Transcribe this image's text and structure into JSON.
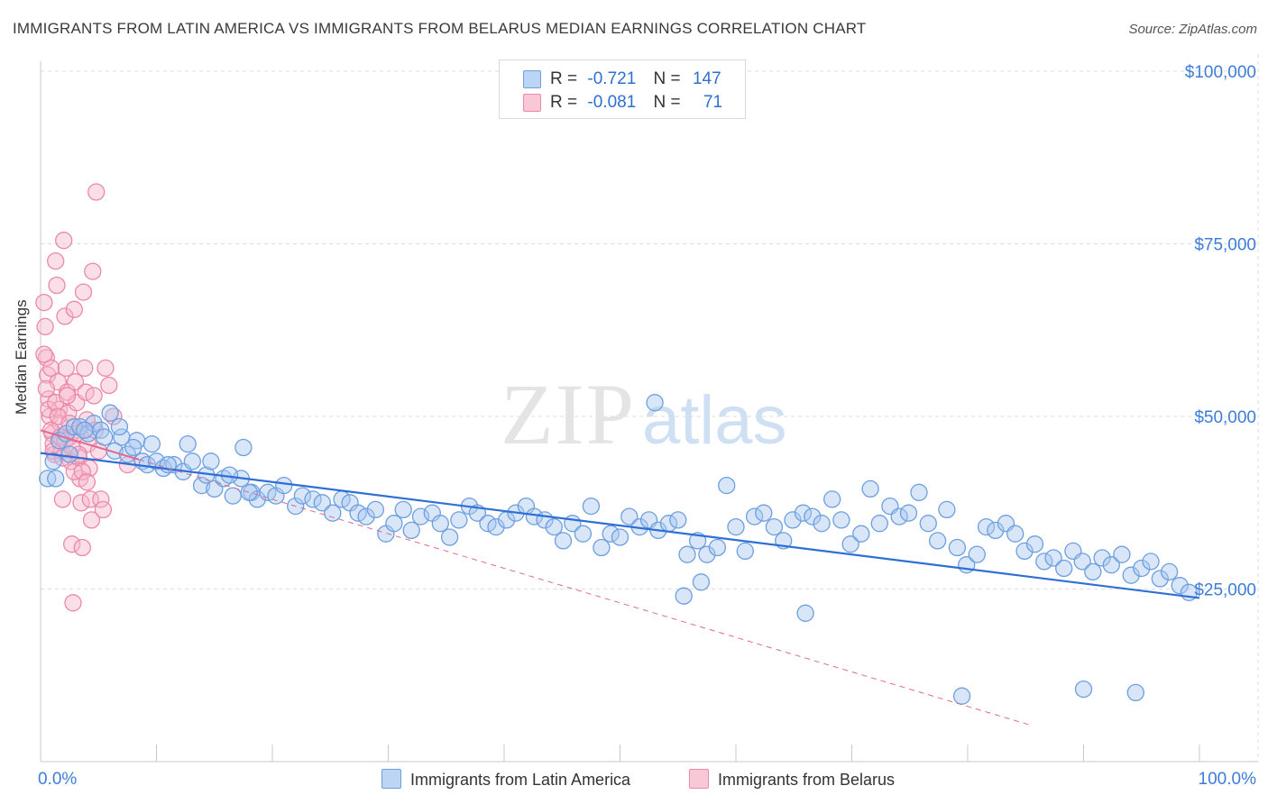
{
  "title": "IMMIGRANTS FROM LATIN AMERICA VS IMMIGRANTS FROM BELARUS MEDIAN EARNINGS CORRELATION CHART",
  "source": "Source: ZipAtlas.com",
  "watermark": {
    "zip": "ZIP",
    "atlas": "atlas"
  },
  "colors": {
    "blue_fill": "#a9c8f0",
    "blue_stroke": "#6d9fe0",
    "blue_line": "#2e6fd6",
    "pink_fill": "#f6b8cb",
    "pink_stroke": "#ec88a8",
    "pink_line": "#e06990",
    "tick_label": "#3d7dd8",
    "grid": "#dcdcdc"
  },
  "legend": {
    "rows": [
      {
        "r_label": "R =",
        "r_value": "-0.721",
        "n_label": "N =",
        "n_value": "147"
      },
      {
        "r_label": "R =",
        "r_value": "-0.081",
        "n_label": "N =",
        "n_value": "71"
      }
    ]
  },
  "bottom_legend": {
    "series1": "Immigrants from Latin America",
    "series2": "Immigrants from Belarus"
  },
  "chart_data": {
    "type": "scatter",
    "title": "IMMIGRANTS FROM LATIN AMERICA VS IMMIGRANTS FROM BELARUS MEDIAN EARNINGS CORRELATION CHART",
    "xlabel": "",
    "ylabel": "Median Earnings",
    "xlim": [
      0,
      100
    ],
    "ylim": [
      0,
      105000
    ],
    "x_tick_labels": [
      "0.0%",
      "100.0%"
    ],
    "y_ticks": [
      25000,
      50000,
      75000,
      100000
    ],
    "y_tick_labels": [
      "$25,000",
      "$50,000",
      "$75,000",
      "$100,000"
    ],
    "grid": true,
    "legend_position": "top-center",
    "series": [
      {
        "name": "Immigrants from Latin America",
        "color": "#a9c8f0",
        "trend": {
          "x": [
            0,
            100
          ],
          "y": [
            44700,
            23700
          ],
          "style": "solid"
        },
        "x": [
          0.6,
          1.1,
          1.6,
          2.2,
          2.9,
          3.4,
          4.1,
          4.6,
          5.2,
          6.0,
          6.4,
          7.0,
          7.5,
          8.3,
          8.8,
          9.2,
          10.0,
          10.6,
          11.5,
          12.3,
          13.1,
          13.9,
          14.3,
          15.0,
          15.8,
          16.6,
          17.3,
          18.2,
          18.7,
          19.6,
          20.3,
          21.0,
          22.0,
          22.6,
          23.5,
          24.3,
          25.2,
          26.0,
          26.7,
          27.4,
          28.1,
          28.9,
          29.8,
          30.5,
          31.3,
          32.0,
          32.8,
          33.8,
          34.5,
          35.3,
          36.1,
          37.0,
          37.7,
          38.6,
          39.3,
          40.2,
          41.0,
          41.9,
          42.6,
          43.5,
          44.3,
          45.1,
          45.9,
          46.8,
          47.5,
          48.4,
          49.2,
          50.0,
          50.8,
          51.7,
          52.5,
          53.3,
          54.2,
          55.0,
          55.8,
          56.7,
          57.5,
          58.4,
          59.2,
          60.0,
          60.8,
          61.6,
          62.4,
          63.3,
          64.1,
          64.9,
          65.8,
          66.6,
          67.4,
          68.3,
          69.1,
          69.9,
          70.8,
          71.6,
          72.4,
          73.3,
          74.1,
          74.9,
          75.8,
          76.6,
          77.4,
          78.2,
          79.1,
          79.9,
          80.8,
          81.6,
          82.4,
          83.3,
          84.1,
          84.9,
          85.8,
          86.6,
          87.4,
          88.3,
          89.1,
          89.9,
          90.8,
          91.6,
          92.4,
          93.3,
          94.1,
          95.0,
          95.8,
          96.6,
          97.4,
          98.3,
          99.1,
          1.3,
          2.5,
          3.8,
          5.5,
          6.8,
          8.0,
          9.6,
          11.0,
          12.7,
          14.7,
          16.3,
          18.0,
          53.0,
          57.0,
          55.5,
          66.0,
          90.0,
          79.5,
          17.5,
          94.5
        ],
        "y": [
          41000,
          43500,
          46500,
          47500,
          48500,
          48500,
          47500,
          49000,
          48000,
          50500,
          45000,
          47000,
          44500,
          46500,
          43500,
          43000,
          43500,
          42500,
          43000,
          42000,
          43500,
          40000,
          41500,
          39500,
          41000,
          38500,
          41000,
          39000,
          38000,
          39000,
          38500,
          40000,
          37000,
          38500,
          38000,
          37500,
          36000,
          38000,
          37500,
          36000,
          35500,
          36500,
          33000,
          34500,
          36500,
          33500,
          35500,
          36000,
          34500,
          32500,
          35000,
          37000,
          36000,
          34500,
          34000,
          35000,
          36000,
          37000,
          35500,
          35000,
          34000,
          32000,
          34500,
          33000,
          37000,
          31000,
          33000,
          32500,
          35500,
          34000,
          35000,
          33500,
          34500,
          35000,
          30000,
          32000,
          30000,
          31000,
          40000,
          34000,
          30500,
          35500,
          36000,
          34000,
          32000,
          35000,
          36000,
          35500,
          34500,
          38000,
          35000,
          31500,
          33000,
          39500,
          34500,
          37000,
          35500,
          36000,
          39000,
          34500,
          32000,
          36500,
          31000,
          28500,
          30000,
          34000,
          33500,
          34500,
          33000,
          30500,
          31500,
          29000,
          29500,
          28000,
          30500,
          29000,
          27500,
          29500,
          28500,
          30000,
          27000,
          28000,
          29000,
          26500,
          27500,
          25500,
          24500,
          41000,
          44500,
          48000,
          47000,
          48500,
          45500,
          46000,
          43000,
          46000,
          43500,
          41500,
          39000,
          52000,
          26000,
          24000,
          21500,
          10500,
          9500,
          45500,
          10000
        ]
      },
      {
        "name": "Immigrants from Belarus",
        "color": "#f6b8cb",
        "trend": {
          "x": [
            0,
            100
          ],
          "y": [
            48000,
            -2000
          ],
          "style": "dashed"
        },
        "x": [
          0.3,
          0.4,
          0.5,
          0.6,
          0.7,
          0.8,
          0.9,
          1.0,
          1.1,
          1.2,
          1.3,
          1.4,
          1.5,
          1.6,
          1.7,
          1.8,
          1.9,
          2.0,
          2.1,
          2.2,
          2.3,
          2.4,
          2.5,
          2.6,
          2.7,
          2.8,
          2.9,
          3.0,
          3.1,
          3.2,
          3.3,
          3.4,
          3.5,
          3.6,
          3.7,
          3.8,
          3.9,
          4.0,
          4.1,
          4.2,
          4.3,
          4.4,
          4.5,
          4.6,
          4.7,
          4.8,
          5.0,
          5.2,
          5.4,
          5.6,
          5.9,
          6.3,
          7.5,
          0.3,
          0.5,
          0.7,
          0.9,
          1.1,
          1.3,
          1.5,
          1.7,
          1.9,
          2.1,
          2.3,
          2.5,
          2.7,
          2.9,
          3.1,
          3.3,
          3.6,
          4.0
        ],
        "y": [
          66500,
          63000,
          58500,
          56000,
          52500,
          50000,
          57000,
          47500,
          46000,
          44500,
          72500,
          69000,
          55000,
          51000,
          49000,
          45000,
          38000,
          75500,
          64500,
          57000,
          53500,
          50500,
          47000,
          43500,
          31500,
          23000,
          65500,
          55000,
          52000,
          48000,
          44000,
          41000,
          37500,
          31000,
          68000,
          57000,
          53500,
          49500,
          46000,
          42500,
          38000,
          35000,
          71000,
          53000,
          48000,
          82500,
          45000,
          38000,
          36500,
          57000,
          54500,
          50000,
          43000,
          59000,
          54000,
          51000,
          48000,
          45000,
          52000,
          50000,
          47000,
          44000,
          46500,
          53000,
          49000,
          45500,
          42000,
          47500,
          44500,
          42000,
          40500
        ]
      }
    ]
  }
}
